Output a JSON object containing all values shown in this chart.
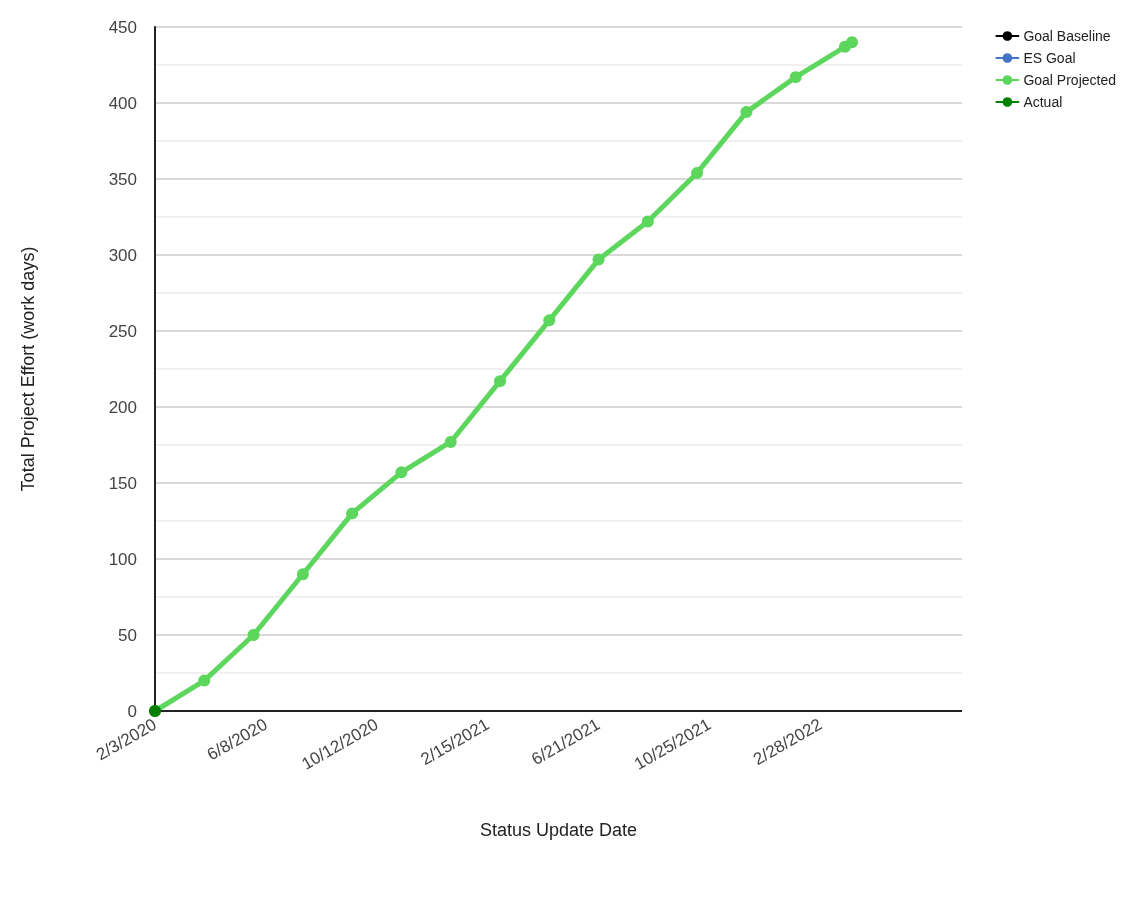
{
  "chart_data": {
    "type": "line",
    "xlabel": "Status Update Date",
    "ylabel": "Total Project Effort (work days)",
    "xlim": [
      "2020-02-03",
      "2022-08-08"
    ],
    "xticks": [
      {
        "value": "2020-02-03",
        "label": "2/3/2020"
      },
      {
        "value": "2020-06-08",
        "label": "6/8/2020"
      },
      {
        "value": "2020-10-12",
        "label": "10/12/2020"
      },
      {
        "value": "2021-02-15",
        "label": "2/15/2021"
      },
      {
        "value": "2021-06-21",
        "label": "6/21/2021"
      },
      {
        "value": "2021-10-25",
        "label": "10/25/2021"
      },
      {
        "value": "2022-02-28",
        "label": "2/28/2022"
      }
    ],
    "ylim": [
      0,
      450
    ],
    "yticks": [
      0,
      50,
      100,
      150,
      200,
      250,
      300,
      350,
      400,
      450
    ],
    "grid": "y",
    "legend": "top right",
    "marker": "circle",
    "line_style": "solid",
    "series": [
      {
        "name": "Goal Baseline",
        "color": "#000000"
      },
      {
        "name": "ES Goal",
        "color": "#4472c4"
      },
      {
        "name": "Goal Projected",
        "color": "#5cd65c",
        "x": [
          "2020-02-03",
          "2020-03-30",
          "2020-05-25",
          "2020-07-20",
          "2020-09-14",
          "2020-11-09",
          "2021-01-04",
          "2021-03-01",
          "2021-04-26",
          "2021-06-21",
          "2021-08-16",
          "2021-10-11",
          "2021-12-06",
          "2022-01-31",
          "2022-03-28",
          "2022-04-05"
        ],
        "values": [
          0,
          20,
          50,
          90,
          130,
          157,
          177,
          217,
          257,
          297,
          322,
          354,
          394,
          417,
          437,
          440
        ]
      },
      {
        "name": "Actual",
        "color": "#008000",
        "x": [
          "2020-02-03"
        ],
        "values": [
          0
        ]
      }
    ]
  }
}
